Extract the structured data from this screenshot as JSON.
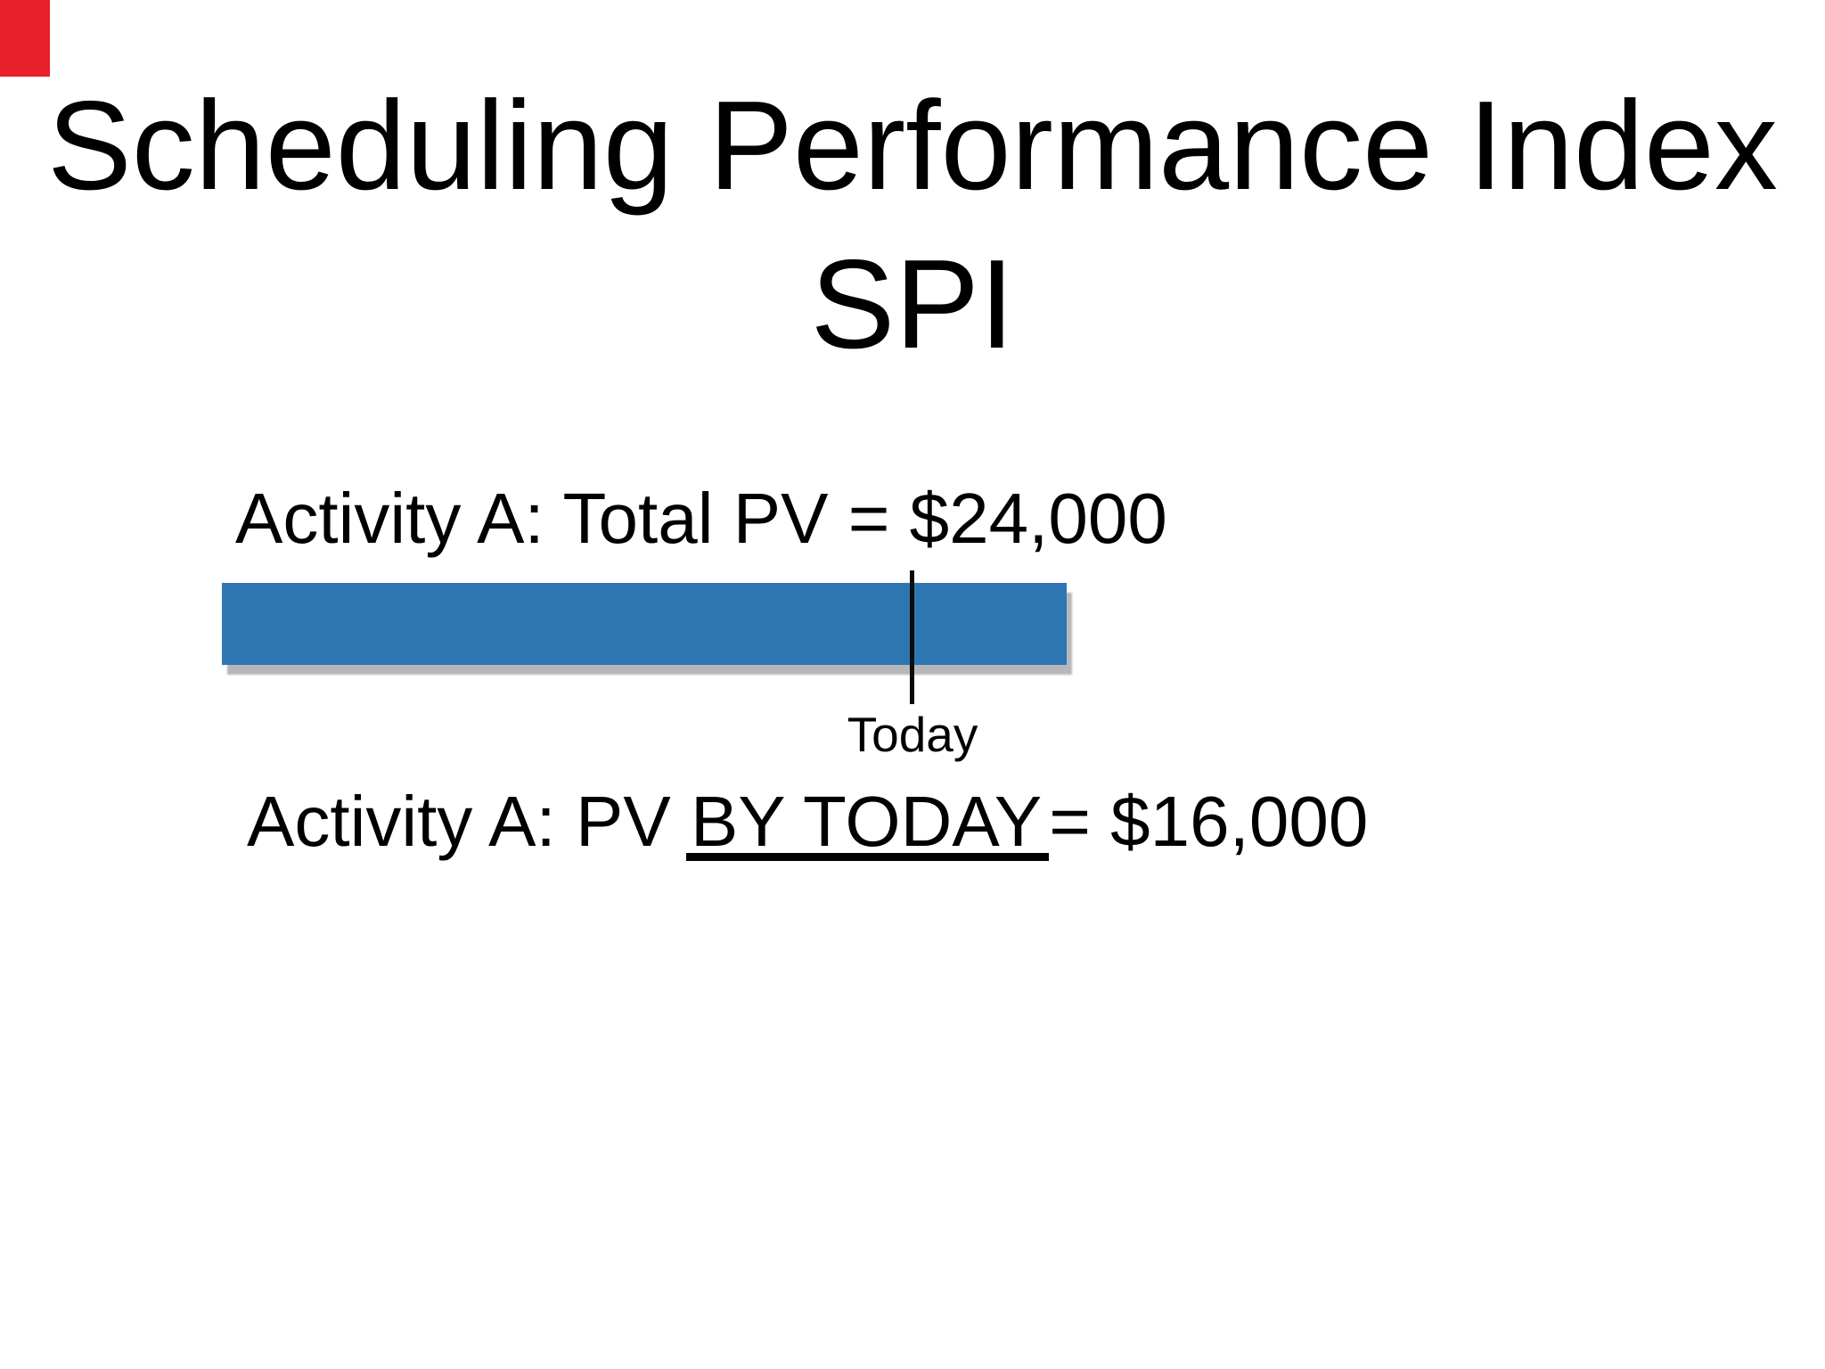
{
  "slide": {
    "background_color": "#FFFFFF",
    "corner_marker_color": "#E9202C",
    "title": {
      "line1": "Scheduling Performance Index",
      "line2": "SPI"
    },
    "activity_total_line": "Activity A: Total PV = $24,000",
    "activity_today_line": {
      "prefix": "Activity A: PV ",
      "underlined": "BY TODAY",
      "suffix": "= $16,000"
    },
    "today_label": "Today",
    "bar": {
      "color": "#2E76B1",
      "shadow_color": "#B5B7B9",
      "marker_line_color": "#0A0A0A"
    }
  }
}
